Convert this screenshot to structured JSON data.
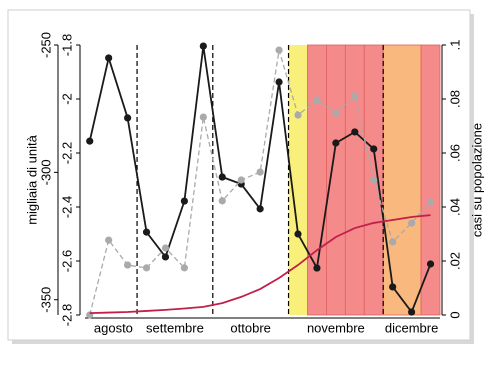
{
  "chart_data": {
    "type": "line",
    "ylabel": "migliaia di unità",
    "y2label": "casi su popolazione",
    "x": [
      0,
      1,
      2,
      3,
      4,
      5,
      6,
      7,
      8,
      9,
      10,
      11,
      12,
      13,
      14,
      15,
      16,
      17,
      18
    ],
    "xlim": [
      -0.25,
      18.5
    ],
    "xticks": [
      {
        "value": 1.25,
        "label": "agosto"
      },
      {
        "value": 4.5,
        "label": "settembre"
      },
      {
        "value": 8.5,
        "label": "ottobre"
      },
      {
        "value": 13,
        "label": "novembre"
      },
      {
        "value": 17,
        "label": "dicembre"
      }
    ],
    "vlines": [
      2.5,
      6.5,
      10.5,
      15.5
    ],
    "shading": [
      {
        "from": 10.5,
        "to": 11.5,
        "color": "#f8f07a"
      },
      {
        "from": 11.5,
        "to": 12.5,
        "color": "#f48a8a"
      },
      {
        "from": 12.5,
        "to": 13.5,
        "color": "#f48a8a"
      },
      {
        "from": 13.5,
        "to": 14.5,
        "color": "#f48a8a"
      },
      {
        "from": 14.5,
        "to": 15.5,
        "color": "#f48a8a"
      },
      {
        "from": 15.5,
        "to": 17.5,
        "color": "#f8b87e"
      },
      {
        "from": 17.5,
        "to": 18.5,
        "color": "#f48a8a"
      }
    ],
    "ylim": [
      -2.8,
      -1.8
    ],
    "yticks": [
      -2.8,
      -2.6,
      -2.4,
      -2.2,
      -2,
      -1.8
    ],
    "y3lim": [
      -356,
      -250
    ],
    "y3ticks": [
      -350,
      -300,
      -250
    ],
    "y2lim": [
      0,
      0.1
    ],
    "y2ticks": [
      0,
      {
        "value": 0.02,
        "label": ".02"
      },
      {
        "value": 0.04,
        "label": ".04"
      },
      {
        "value": 0.06,
        "label": ".06"
      },
      {
        "value": 0.08,
        "label": ".08"
      },
      {
        "value": 0.1,
        "label": ".1"
      }
    ],
    "series": [
      {
        "color": "#1a1a1a",
        "axis": "y",
        "style": "solid",
        "markers": true,
        "values": [
          -2.156,
          -1.848,
          -2.07,
          -2.493,
          -2.585,
          -2.378,
          -1.804,
          -2.289,
          -2.315,
          -2.407,
          -1.937,
          -2.5,
          -2.626,
          -2.163,
          -2.122,
          -2.185,
          -2.696,
          -2.789,
          -2.611
        ]
      },
      {
        "color": "#aaaaaa",
        "axis": "y3",
        "style": "dashed",
        "markers": true,
        "values": [
          -356,
          -326.6,
          -336.4,
          -337.5,
          -329.7,
          -337.5,
          -278.3,
          -311.2,
          -303,
          -299.9,
          -252,
          -277.5,
          -271.6,
          -276.7,
          -270,
          -303,
          -327.3,
          -319.9,
          -311.6
        ]
      },
      {
        "color": "#c0204a",
        "axis": "y2",
        "style": "solid",
        "markers": false,
        "values": [
          0.0007,
          0.0009,
          0.0011,
          0.0015,
          0.0019,
          0.0024,
          0.003,
          0.0044,
          0.0067,
          0.0096,
          0.0137,
          0.0185,
          0.024,
          0.0289,
          0.0322,
          0.0341,
          0.0352,
          0.0363,
          0.037
        ]
      }
    ]
  }
}
